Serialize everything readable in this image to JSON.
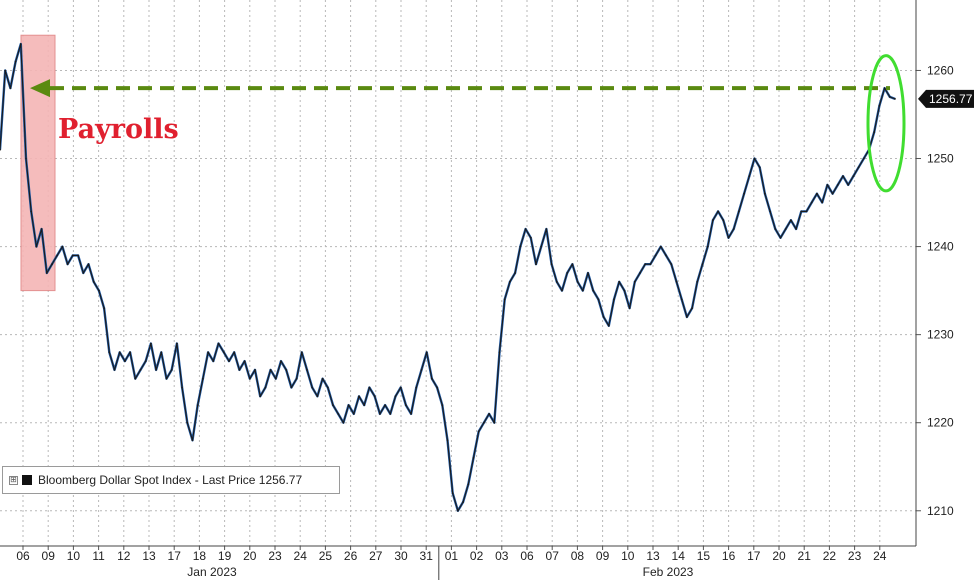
{
  "chart_data": {
    "type": "line",
    "title": "",
    "series": [
      {
        "name": "Bloomberg Dollar Spot Index",
        "color": "#1a1a1a",
        "accent": "#1f5aa6",
        "points": [
          [
            "06",
            1251
          ],
          [
            "06",
            1260
          ],
          [
            "06",
            1258
          ],
          [
            "06",
            1261
          ],
          [
            "06",
            1263
          ],
          [
            "09",
            1250
          ],
          [
            "09",
            1244
          ],
          [
            "09",
            1240
          ],
          [
            "09",
            1242
          ],
          [
            "09",
            1237
          ],
          [
            "10",
            1238
          ],
          [
            "10",
            1239
          ],
          [
            "10",
            1240
          ],
          [
            "10",
            1238
          ],
          [
            "10",
            1239
          ],
          [
            "11",
            1239
          ],
          [
            "11",
            1237
          ],
          [
            "11",
            1238
          ],
          [
            "11",
            1236
          ],
          [
            "11",
            1235
          ],
          [
            "12",
            1233
          ],
          [
            "12",
            1228
          ],
          [
            "12",
            1226
          ],
          [
            "12",
            1228
          ],
          [
            "12",
            1227
          ],
          [
            "13",
            1228
          ],
          [
            "13",
            1225
          ],
          [
            "13",
            1226
          ],
          [
            "13",
            1227
          ],
          [
            "13",
            1229
          ],
          [
            "17",
            1226
          ],
          [
            "17",
            1228
          ],
          [
            "17",
            1225
          ],
          [
            "17",
            1226
          ],
          [
            "17",
            1229
          ],
          [
            "18",
            1224
          ],
          [
            "18",
            1220
          ],
          [
            "18",
            1218
          ],
          [
            "18",
            1222
          ],
          [
            "18",
            1225
          ],
          [
            "19",
            1228
          ],
          [
            "19",
            1227
          ],
          [
            "19",
            1229
          ],
          [
            "19",
            1228
          ],
          [
            "19",
            1227
          ],
          [
            "20",
            1228
          ],
          [
            "20",
            1226
          ],
          [
            "20",
            1227
          ],
          [
            "20",
            1225
          ],
          [
            "20",
            1226
          ],
          [
            "23",
            1223
          ],
          [
            "23",
            1224
          ],
          [
            "23",
            1226
          ],
          [
            "23",
            1225
          ],
          [
            "23",
            1227
          ],
          [
            "24",
            1226
          ],
          [
            "24",
            1224
          ],
          [
            "24",
            1225
          ],
          [
            "24",
            1228
          ],
          [
            "24",
            1226
          ],
          [
            "25",
            1224
          ],
          [
            "25",
            1223
          ],
          [
            "25",
            1225
          ],
          [
            "25",
            1224
          ],
          [
            "25",
            1222
          ],
          [
            "26",
            1221
          ],
          [
            "26",
            1220
          ],
          [
            "26",
            1222
          ],
          [
            "26",
            1221
          ],
          [
            "26",
            1223
          ],
          [
            "27",
            1222
          ],
          [
            "27",
            1224
          ],
          [
            "27",
            1223
          ],
          [
            "27",
            1221
          ],
          [
            "27",
            1222
          ],
          [
            "30",
            1221
          ],
          [
            "30",
            1223
          ],
          [
            "30",
            1224
          ],
          [
            "30",
            1222
          ],
          [
            "30",
            1221
          ],
          [
            "31",
            1224
          ],
          [
            "31",
            1226
          ],
          [
            "31",
            1228
          ],
          [
            "31",
            1225
          ],
          [
            "31",
            1224
          ],
          [
            "01",
            1222
          ],
          [
            "01",
            1218
          ],
          [
            "01",
            1212
          ],
          [
            "01",
            1210
          ],
          [
            "01",
            1211
          ],
          [
            "02",
            1213
          ],
          [
            "02",
            1216
          ],
          [
            "02",
            1219
          ],
          [
            "02",
            1220
          ],
          [
            "02",
            1221
          ],
          [
            "03",
            1220
          ],
          [
            "03",
            1228
          ],
          [
            "03",
            1234
          ],
          [
            "03",
            1236
          ],
          [
            "03",
            1237
          ],
          [
            "06",
            1240
          ],
          [
            "06",
            1242
          ],
          [
            "06",
            1241
          ],
          [
            "06",
            1238
          ],
          [
            "06",
            1240
          ],
          [
            "07",
            1242
          ],
          [
            "07",
            1238
          ],
          [
            "07",
            1236
          ],
          [
            "07",
            1235
          ],
          [
            "07",
            1237
          ],
          [
            "08",
            1238
          ],
          [
            "08",
            1236
          ],
          [
            "08",
            1235
          ],
          [
            "08",
            1237
          ],
          [
            "08",
            1235
          ],
          [
            "09",
            1234
          ],
          [
            "09",
            1232
          ],
          [
            "09",
            1231
          ],
          [
            "09",
            1234
          ],
          [
            "09",
            1236
          ],
          [
            "10",
            1235
          ],
          [
            "10",
            1233
          ],
          [
            "10",
            1236
          ],
          [
            "10",
            1237
          ],
          [
            "10",
            1238
          ],
          [
            "13",
            1238
          ],
          [
            "13",
            1239
          ],
          [
            "13",
            1240
          ],
          [
            "13",
            1239
          ],
          [
            "13",
            1238
          ],
          [
            "14",
            1236
          ],
          [
            "14",
            1234
          ],
          [
            "14",
            1232
          ],
          [
            "14",
            1233
          ],
          [
            "14",
            1236
          ],
          [
            "15",
            1238
          ],
          [
            "15",
            1240
          ],
          [
            "15",
            1243
          ],
          [
            "15",
            1244
          ],
          [
            "15",
            1243
          ],
          [
            "16",
            1241
          ],
          [
            "16",
            1242
          ],
          [
            "16",
            1244
          ],
          [
            "16",
            1246
          ],
          [
            "16",
            1248
          ],
          [
            "17",
            1250
          ],
          [
            "17",
            1249
          ],
          [
            "17",
            1246
          ],
          [
            "17",
            1244
          ],
          [
            "17",
            1242
          ],
          [
            "20",
            1241
          ],
          [
            "20",
            1242
          ],
          [
            "20",
            1243
          ],
          [
            "20",
            1242
          ],
          [
            "20",
            1244
          ],
          [
            "21",
            1244
          ],
          [
            "21",
            1245
          ],
          [
            "21",
            1246
          ],
          [
            "21",
            1245
          ],
          [
            "21",
            1247
          ],
          [
            "22",
            1246
          ],
          [
            "22",
            1247
          ],
          [
            "22",
            1248
          ],
          [
            "22",
            1247
          ],
          [
            "22",
            1248
          ],
          [
            "23",
            1249
          ],
          [
            "23",
            1250
          ],
          [
            "23",
            1251
          ],
          [
            "23",
            1253
          ],
          [
            "23",
            1256
          ],
          [
            "24",
            1258
          ],
          [
            "24",
            1257
          ],
          [
            "24",
            1256.77
          ]
        ]
      }
    ],
    "x_ticks": [
      "06",
      "09",
      "10",
      "11",
      "12",
      "13",
      "17",
      "18",
      "19",
      "20",
      "23",
      "24",
      "25",
      "26",
      "27",
      "30",
      "31",
      "01",
      "02",
      "03",
      "06",
      "07",
      "08",
      "09",
      "10",
      "13",
      "14",
      "15",
      "16",
      "17",
      "20",
      "21",
      "22",
      "23",
      "24"
    ],
    "months": [
      "Jan 2023",
      "Feb 2023"
    ],
    "y_ticks": [
      1210,
      1220,
      1230,
      1240,
      1250,
      1260
    ],
    "ylim": [
      1206,
      1268
    ],
    "grid": true,
    "legend_position": "bottom-left",
    "last_price": {
      "label": "1256.77",
      "value": 1256.77
    },
    "annotations": {
      "highlight_label": "Payrolls",
      "highlight_range": [
        1235,
        1264
      ],
      "reference_level": 1258,
      "circle_range": [
        1247,
        1261
      ]
    },
    "colors": {
      "highlight_fill": "#f5b5b5",
      "highlight_stroke": "#e08585",
      "dashed_line": "#5a8a10",
      "circle": "#40dd30",
      "label_text": "#e0202f"
    }
  },
  "legend": {
    "toggle": "⊞",
    "label": "Bloomberg Dollar Spot Index - Last Price 1256.77"
  }
}
